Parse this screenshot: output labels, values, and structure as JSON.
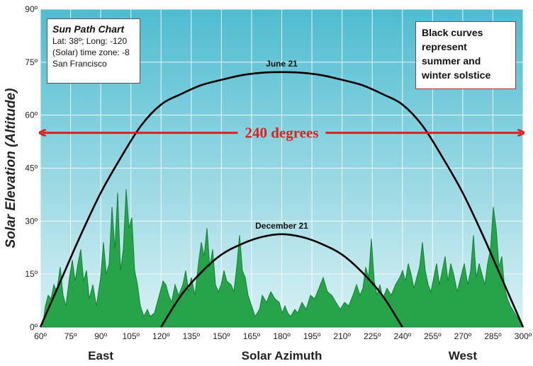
{
  "chart_data": {
    "type": "line",
    "title": "Sun Path Chart",
    "xlabel": "Solar Azimuth",
    "ylabel": "Solar Elevation (Altitude)",
    "x_ticks": [
      "60º",
      "75º",
      "90º",
      "105º",
      "120º",
      "135º",
      "150º",
      "165º",
      "180º",
      "195º",
      "210º",
      "225º",
      "240º",
      "255º",
      "270º",
      "285º",
      "300º"
    ],
    "y_ticks": [
      "0º",
      "15º",
      "30º",
      "45º",
      "60º",
      "75º",
      "90º"
    ],
    "xlim": [
      60,
      300
    ],
    "ylim": [
      0,
      90
    ],
    "direction_labels": [
      "East",
      "West"
    ],
    "series": [
      {
        "name": "June 21",
        "x": [
          60,
          70,
          80,
          90,
          100,
          110,
          120,
          130,
          140,
          150,
          160,
          170,
          180,
          190,
          200,
          210,
          220,
          230,
          240,
          250,
          260,
          270,
          280,
          290,
          300
        ],
        "y": [
          0,
          13,
          26,
          38,
          48,
          57,
          63,
          66,
          68.5,
          70,
          71.3,
          72,
          72.2,
          72,
          71.3,
          70,
          68.5,
          66,
          63,
          57,
          48,
          38,
          26,
          13,
          0
        ]
      },
      {
        "name": "December 21",
        "x": [
          120,
          130,
          140,
          150,
          160,
          170,
          180,
          190,
          200,
          210,
          220,
          230,
          240
        ],
        "y": [
          0,
          9,
          15.5,
          20.5,
          23.5,
          25.5,
          26.3,
          25.5,
          23.5,
          20.5,
          15.5,
          9,
          0
        ]
      }
    ],
    "info": [
      "Sun Path Chart",
      "Lat: 38º; Long: -120",
      "(Solar) time zone: -8",
      "San Francisco"
    ],
    "note": [
      "Black curves",
      "represent",
      "summer and",
      "winter solstice"
    ],
    "span_annotation": {
      "label": "240 degrees",
      "from": 60,
      "to": 300,
      "y": 55
    },
    "colors": {
      "sky_top": "#4fbcd0",
      "sky_bottom": "#d9f1f4",
      "trees": "#27a34a",
      "tree_shadow": "#17803a",
      "curve": "#000000",
      "arrow": "#e02020"
    }
  }
}
